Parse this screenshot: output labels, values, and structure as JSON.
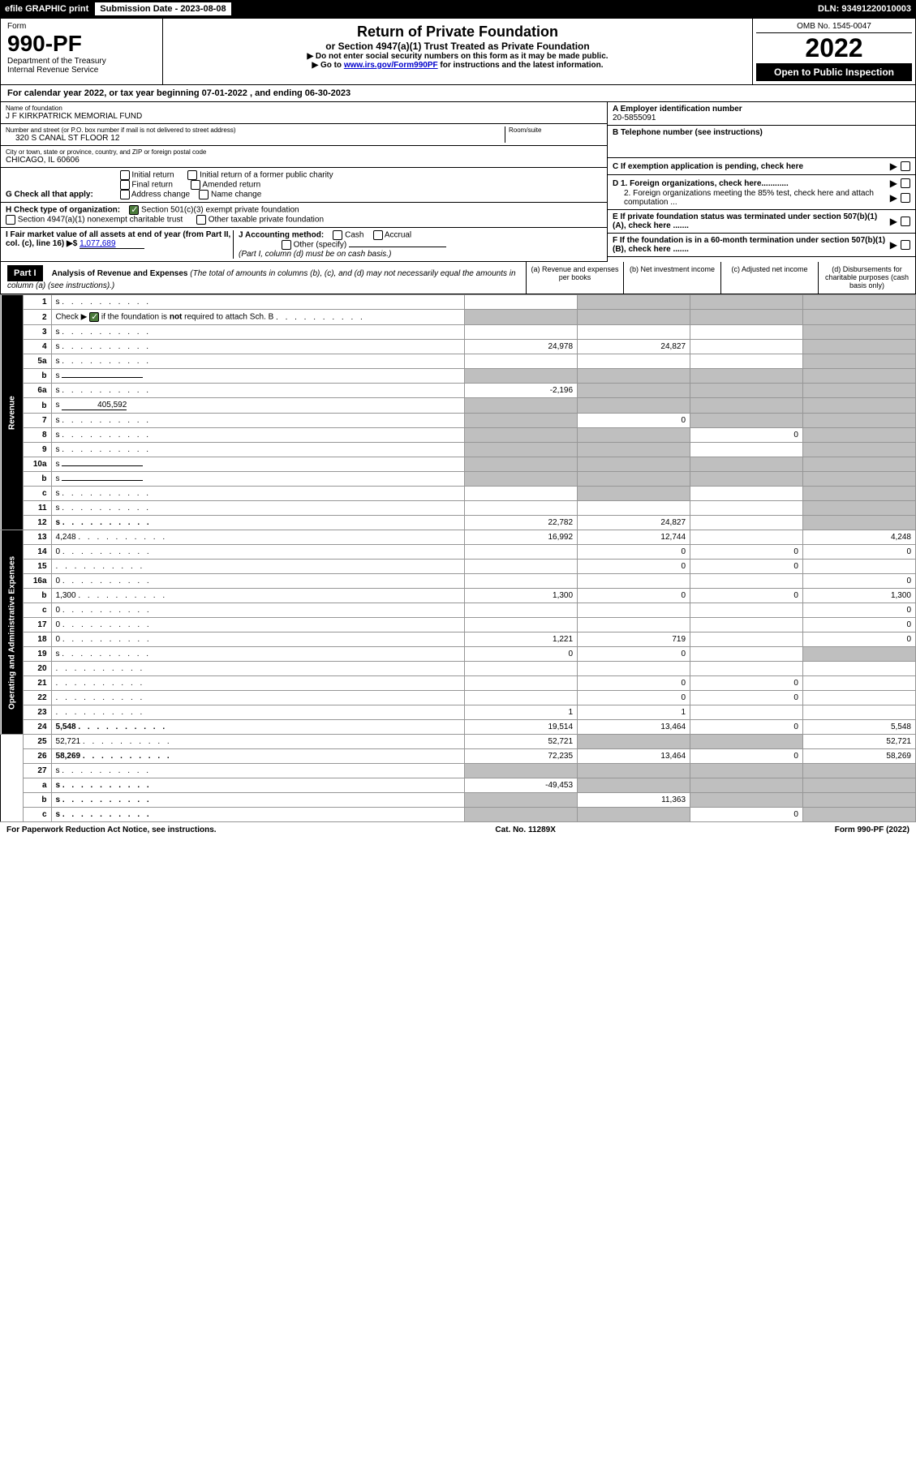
{
  "header": {
    "efile": "efile GRAPHIC print",
    "sub_label": "Submission Date - 2023-08-08",
    "dln": "DLN: 93491220010003"
  },
  "form_box": {
    "form": "Form",
    "num": "990-PF",
    "dept": "Department of the Treasury",
    "irs": "Internal Revenue Service"
  },
  "title": {
    "main": "Return of Private Foundation",
    "sub": "or Section 4947(a)(1) Trust Treated as Private Foundation",
    "note1": "▶ Do not enter social security numbers on this form as it may be made public.",
    "note2_pre": "▶ Go to ",
    "note2_link": "www.irs.gov/Form990PF",
    "note2_post": " for instructions and the latest information."
  },
  "year_box": {
    "omb": "OMB No. 1545-0047",
    "year": "2022",
    "open": "Open to Public Inspection"
  },
  "cal": "For calendar year 2022, or tax year beginning 07-01-2022           , and ending 06-30-2023",
  "name": {
    "label": "Name of foundation",
    "val": "J F KIRKPATRICK MEMORIAL FUND"
  },
  "addr": {
    "label": "Number and street (or P.O. box number if mail is not delivered to street address)",
    "val": "320 S CANAL ST FLOOR 12",
    "room": "Room/suite"
  },
  "city": {
    "label": "City or town, state or province, country, and ZIP or foreign postal code",
    "val": "CHICAGO, IL  60606"
  },
  "a": {
    "label": "A Employer identification number",
    "val": "20-5855091"
  },
  "b": {
    "label": "B Telephone number (see instructions)"
  },
  "c": "C If exemption application is pending, check here",
  "d1": "D 1. Foreign organizations, check here............",
  "d2": "2. Foreign organizations meeting the 85% test, check here and attach computation ...",
  "e": "E  If private foundation status was terminated under section 507(b)(1)(A), check here .......",
  "f": "F  If the foundation is in a 60-month termination under section 507(b)(1)(B), check here .......",
  "g": {
    "label": "G Check all that apply:",
    "opts": [
      "Initial return",
      "Initial return of a former public charity",
      "Final return",
      "Amended return",
      "Address change",
      "Name change"
    ]
  },
  "h": {
    "label": "H Check type of organization:",
    "opts": [
      "Section 501(c)(3) exempt private foundation",
      "Section 4947(a)(1) nonexempt charitable trust",
      "Other taxable private foundation"
    ]
  },
  "i": {
    "label": "I Fair market value of all assets at end of year (from Part II, col. (c), line 16) ▶$ ",
    "val": "1,077,689"
  },
  "j": {
    "label": "J Accounting method:",
    "cash": "Cash",
    "accrual": "Accrual",
    "other": "Other (specify)",
    "note": "(Part I, column (d) must be on cash basis.)"
  },
  "part1": {
    "label": "Part I",
    "title": "Analysis of Revenue and Expenses",
    "note": "(The total of amounts in columns (b), (c), and (d) may not necessarily equal the amounts in column (a) (see instructions).)",
    "col_a": "(a)   Revenue and expenses per books",
    "col_b": "(b)   Net investment income",
    "col_c": "(c)   Adjusted net income",
    "col_d": "(d)   Disbursements for charitable purposes (cash basis only)"
  },
  "vlabels": {
    "rev": "Revenue",
    "ope": "Operating and Administrative Expenses"
  },
  "rows": [
    {
      "n": "1",
      "d": "s",
      "a": "",
      "b": "s",
      "c": "s"
    },
    {
      "n": "2",
      "d": "s",
      "a": "s",
      "b": "s",
      "c": "s",
      "special": "check"
    },
    {
      "n": "3",
      "d": "s",
      "a": "",
      "b": "",
      "c": ""
    },
    {
      "n": "4",
      "d": "s",
      "a": "24,978",
      "b": "24,827",
      "c": ""
    },
    {
      "n": "5a",
      "d": "s",
      "a": "",
      "b": "",
      "c": ""
    },
    {
      "n": "b",
      "d": "s",
      "a": "s",
      "b": "s",
      "c": "s",
      "inline": true
    },
    {
      "n": "6a",
      "d": "s",
      "a": "-2,196",
      "b": "s",
      "c": "s"
    },
    {
      "n": "b",
      "d": "s",
      "a": "s",
      "b": "s",
      "c": "s",
      "inline_val": "405,592"
    },
    {
      "n": "7",
      "d": "s",
      "a": "s",
      "b": "0",
      "c": "s"
    },
    {
      "n": "8",
      "d": "s",
      "a": "s",
      "b": "s",
      "c": "0"
    },
    {
      "n": "9",
      "d": "s",
      "a": "s",
      "b": "s",
      "c": ""
    },
    {
      "n": "10a",
      "d": "s",
      "a": "s",
      "b": "s",
      "c": "s",
      "inline": true
    },
    {
      "n": "b",
      "d": "s",
      "a": "s",
      "b": "s",
      "c": "s",
      "inline": true
    },
    {
      "n": "c",
      "d": "s",
      "a": "",
      "b": "s",
      "c": ""
    },
    {
      "n": "11",
      "d": "s",
      "a": "",
      "b": "",
      "c": ""
    },
    {
      "n": "12",
      "d": "s",
      "a": "22,782",
      "b": "24,827",
      "c": "",
      "bold": true
    },
    {
      "n": "13",
      "d": "4,248",
      "a": "16,992",
      "b": "12,744",
      "c": ""
    },
    {
      "n": "14",
      "d": "0",
      "a": "",
      "b": "0",
      "c": "0"
    },
    {
      "n": "15",
      "d": "",
      "a": "",
      "b": "0",
      "c": "0"
    },
    {
      "n": "16a",
      "d": "0",
      "a": "",
      "b": "",
      "c": ""
    },
    {
      "n": "b",
      "d": "1,300",
      "a": "1,300",
      "b": "0",
      "c": "0"
    },
    {
      "n": "c",
      "d": "0",
      "a": "",
      "b": "",
      "c": ""
    },
    {
      "n": "17",
      "d": "0",
      "a": "",
      "b": "",
      "c": ""
    },
    {
      "n": "18",
      "d": "0",
      "a": "1,221",
      "b": "719",
      "c": ""
    },
    {
      "n": "19",
      "d": "s",
      "a": "0",
      "b": "0",
      "c": ""
    },
    {
      "n": "20",
      "d": "",
      "a": "",
      "b": "",
      "c": ""
    },
    {
      "n": "21",
      "d": "",
      "a": "",
      "b": "0",
      "c": "0"
    },
    {
      "n": "22",
      "d": "",
      "a": "",
      "b": "0",
      "c": "0"
    },
    {
      "n": "23",
      "d": "",
      "a": "1",
      "b": "1",
      "c": ""
    },
    {
      "n": "24",
      "d": "5,548",
      "a": "19,514",
      "b": "13,464",
      "c": "0",
      "bold": true
    },
    {
      "n": "25",
      "d": "52,721",
      "a": "52,721",
      "b": "s",
      "c": "s"
    },
    {
      "n": "26",
      "d": "58,269",
      "a": "72,235",
      "b": "13,464",
      "c": "0",
      "bold": true
    },
    {
      "n": "27",
      "d": "s",
      "a": "s",
      "b": "s",
      "c": "s"
    },
    {
      "n": "a",
      "d": "s",
      "a": "-49,453",
      "b": "s",
      "c": "s",
      "bold": true
    },
    {
      "n": "b",
      "d": "s",
      "a": "s",
      "b": "11,363",
      "c": "s",
      "bold": true
    },
    {
      "n": "c",
      "d": "s",
      "a": "s",
      "b": "s",
      "c": "0",
      "bold": true
    }
  ],
  "footer": {
    "left": "For Paperwork Reduction Act Notice, see instructions.",
    "mid": "Cat. No. 11289X",
    "right": "Form 990-PF (2022)"
  }
}
